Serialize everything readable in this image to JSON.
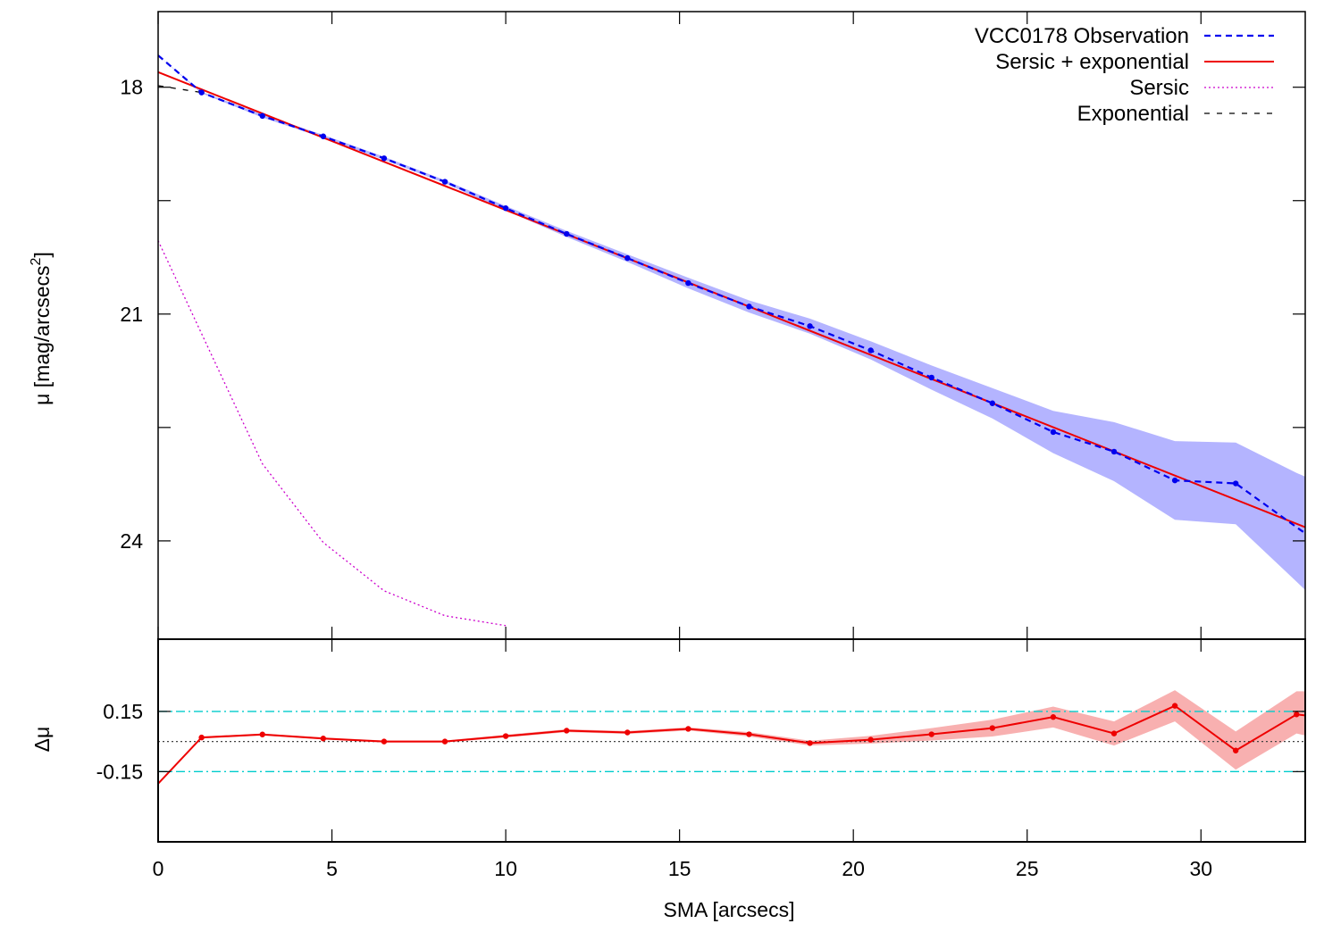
{
  "chart_data": [
    {
      "type": "line",
      "panel": "main",
      "ylabel": "μ [mag/arcsecs",
      "ylabel_superscript": "2",
      "ylabel_suffix": "]",
      "ylim": [
        17.0,
        25.3
      ],
      "y_inverted": true,
      "yticks": [
        18,
        21,
        24
      ],
      "legend_position": "top-right",
      "series": [
        {
          "name": "VCC0178 Observation",
          "style": "dashed",
          "color": "#0000ee",
          "x": [
            0,
            1.25,
            3.0,
            4.75,
            6.5,
            8.25,
            10.0,
            11.75,
            13.5,
            15.25,
            17.0,
            18.75,
            20.5,
            22.25,
            24.0,
            25.75,
            27.5,
            29.25,
            31.0,
            32.75,
            33.0
          ],
          "y": [
            17.58,
            18.07,
            18.38,
            18.65,
            18.94,
            19.25,
            19.6,
            19.94,
            20.26,
            20.59,
            20.9,
            21.16,
            21.48,
            21.84,
            22.18,
            22.56,
            22.82,
            23.2,
            23.24,
            23.82,
            23.9
          ],
          "lower": [
            17.58,
            18.06,
            18.36,
            18.63,
            18.92,
            19.23,
            19.57,
            19.9,
            20.21,
            20.52,
            20.82,
            21.06,
            21.36,
            21.68,
            21.98,
            22.28,
            22.43,
            22.68,
            22.7,
            23.1,
            23.15
          ],
          "upper": [
            17.58,
            18.08,
            18.4,
            18.67,
            18.96,
            19.27,
            19.63,
            19.98,
            20.31,
            20.66,
            20.98,
            21.26,
            21.6,
            22.0,
            22.38,
            22.84,
            23.21,
            23.72,
            23.78,
            24.54,
            24.65
          ],
          "markers_x": [
            1.25,
            3.0,
            4.75,
            6.5,
            8.25,
            10.0,
            11.75,
            13.5,
            15.25,
            17.0,
            18.75,
            20.5,
            22.25,
            24.0,
            25.75,
            27.5,
            29.25,
            31.0
          ]
        },
        {
          "name": "Sersic + exponential",
          "style": "solid",
          "color": "#ee0000",
          "x": [
            0,
            33.0
          ],
          "y": [
            17.8,
            23.82
          ]
        },
        {
          "name": "Sersic",
          "style": "dotted",
          "color": "#cc00cc",
          "x": [
            0,
            3.0,
            4.75,
            6.5,
            8.25,
            10.0
          ],
          "y": [
            20.03,
            22.98,
            24.02,
            24.66,
            24.99,
            25.12
          ]
        },
        {
          "name": "Exponential",
          "style": "dashed-fine",
          "color": "#000000",
          "x": [
            0,
            1.25
          ],
          "y": [
            17.98,
            18.07
          ]
        }
      ]
    },
    {
      "type": "line",
      "panel": "residual",
      "xlabel": "SMA [arcsecs]",
      "ylabel": "Δμ",
      "xlim": [
        0,
        33
      ],
      "ylim": [
        -0.5,
        0.51
      ],
      "xticks": [
        0,
        5,
        10,
        15,
        20,
        25,
        30
      ],
      "yticks": [
        0.15,
        -0.15
      ],
      "ytick_labels": [
        "0.15",
        "-0.15"
      ],
      "reference_lines": [
        {
          "y": 0.15,
          "style": "dash-dot",
          "color": "#00cccc"
        },
        {
          "y": -0.15,
          "style": "dash-dot",
          "color": "#00cccc"
        },
        {
          "y": 0.0,
          "style": "dotted",
          "color": "#444444"
        }
      ],
      "series": [
        {
          "name": "",
          "color": "#ee0000",
          "x": [
            0,
            1.25,
            3.0,
            4.75,
            6.5,
            8.25,
            10.0,
            11.75,
            13.5,
            15.25,
            17.0,
            18.75,
            20.5,
            22.25,
            24.0,
            25.75,
            27.5,
            29.25,
            31.0,
            32.75,
            33.0
          ],
          "y": [
            -0.21,
            0.02,
            0.035,
            0.015,
            0.0,
            0.0,
            0.027,
            0.054,
            0.045,
            0.063,
            0.036,
            -0.008,
            0.009,
            0.036,
            0.067,
            0.122,
            0.04,
            0.178,
            -0.045,
            0.135,
            0.13
          ],
          "lower": [
            -0.21,
            0.015,
            0.03,
            0.01,
            -0.005,
            -0.005,
            0.02,
            0.047,
            0.038,
            0.055,
            0.025,
            -0.02,
            -0.01,
            0.005,
            0.025,
            0.07,
            -0.02,
            0.1,
            -0.14,
            0.04,
            0.03
          ],
          "upper": [
            -0.21,
            0.025,
            0.04,
            0.02,
            0.005,
            0.005,
            0.034,
            0.061,
            0.052,
            0.071,
            0.047,
            0.004,
            0.028,
            0.067,
            0.109,
            0.174,
            0.1,
            0.256,
            0.05,
            0.25,
            0.25
          ],
          "markers_x": [
            1.25,
            3.0,
            4.75,
            6.5,
            8.25,
            10.0,
            11.75,
            13.5,
            15.25,
            17.0,
            18.75,
            20.5,
            22.25,
            24.0,
            25.75,
            27.5,
            29.25,
            31.0,
            32.75
          ]
        }
      ]
    }
  ],
  "colors": {
    "observation_band": "#b4b4ff",
    "residual_band": "#f8b0b0"
  }
}
